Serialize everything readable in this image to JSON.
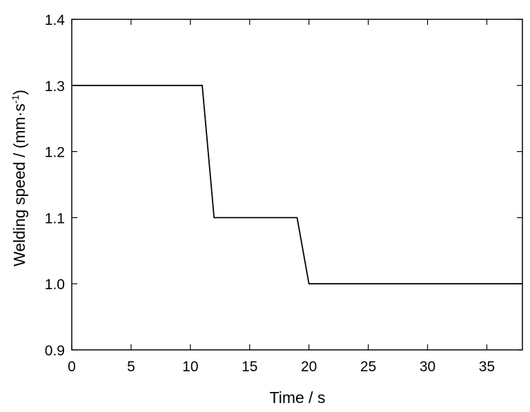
{
  "chart_data": {
    "type": "line",
    "title": "",
    "xlabel": "Time / s",
    "ylabel": {
      "main": "Welding speed / (mm·s",
      "superscript": "-1",
      "close": ")"
    },
    "xlim": [
      0,
      38
    ],
    "ylim": [
      0.9,
      1.4
    ],
    "x_ticks": [
      "0",
      "5",
      "10",
      "15",
      "20",
      "25",
      "30",
      "35"
    ],
    "y_ticks": [
      "0.9",
      "1.0",
      "1.1",
      "1.2",
      "1.3",
      "1.4"
    ],
    "grid": false,
    "series": [
      {
        "color": "#000000",
        "x": [
          0,
          11,
          12,
          19,
          20,
          38
        ],
        "y": [
          1.3,
          1.3,
          1.1,
          1.1,
          1.0,
          1.0
        ]
      }
    ]
  }
}
